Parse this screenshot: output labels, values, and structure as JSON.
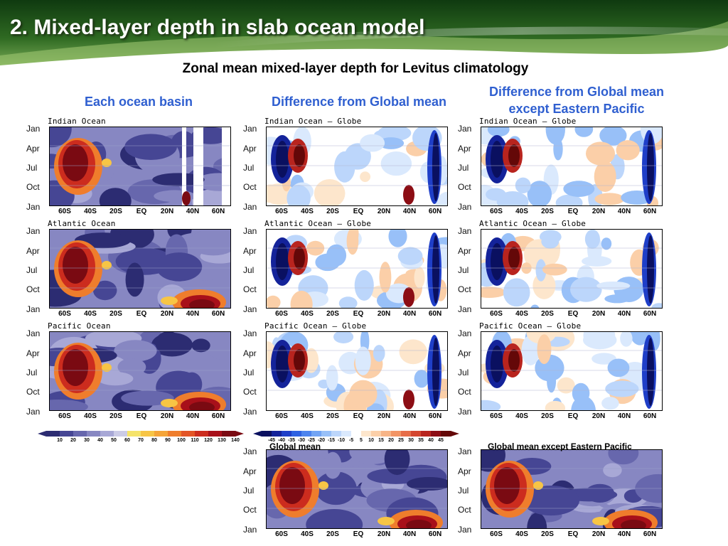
{
  "slide": {
    "title": "2. Mixed-layer depth in slab ocean model",
    "subtitle": "Zonal mean mixed-layer depth for Levitus climatology"
  },
  "columns": {
    "basin": "Each ocean basin",
    "diff": "Difference from Global mean",
    "diff_ex": "Difference from Global mean except Eastern Pacific"
  },
  "axes": {
    "months": [
      "Jan",
      "Apr",
      "Jul",
      "Oct",
      "Jan"
    ],
    "lats": [
      "60S",
      "40S",
      "20S",
      "EQ",
      "20N",
      "40N",
      "60N"
    ]
  },
  "panels": {
    "indian": "Indian  Ocean",
    "indian_diff": "Indian  Ocean  —  Globe",
    "indian_diff_ex": "Indian  Ocean  —  Globe",
    "atlantic": "Atlantic  Ocean",
    "atlantic_diff": "Atlantic  Ocean  —  Globe",
    "atlantic_diff_ex": "Atlantic  Ocean  —  Globe",
    "pacific": "Pacific  Ocean",
    "pacific_diff": "Pacific  Ocean  —  Globe",
    "pacific_diff_ex": "Pacific  Ocean  —  Globe",
    "global": "Global mean",
    "global_ex": "Global mean except Eastern Pacific"
  },
  "colorbars": {
    "abs": {
      "labels": [
        "10",
        "20",
        "30",
        "40",
        "50",
        "60",
        "70",
        "80",
        "90",
        "100",
        "110",
        "120",
        "130",
        "140"
      ],
      "colors": [
        "#2c2c72",
        "#464694",
        "#6767ad",
        "#8787c2",
        "#a8a8d6",
        "#cbcbe6",
        "#f5e36a",
        "#f7c545",
        "#f5a437",
        "#ef7d2c",
        "#e35526",
        "#cc2c1e",
        "#a8101a",
        "#7a0a12"
      ]
    },
    "diff": {
      "labels": [
        "-45",
        "-40",
        "-35",
        "-30",
        "-25",
        "-20",
        "-15",
        "-10",
        "-5",
        "5",
        "10",
        "15",
        "20",
        "25",
        "30",
        "35",
        "40",
        "45"
      ],
      "colors": [
        "#0a1060",
        "#14239a",
        "#1f3fc8",
        "#2f62e2",
        "#4d84ee",
        "#72a4f4",
        "#98c0f8",
        "#bcd6fb",
        "#dae9fd",
        "#ffffff",
        "#fde6cc",
        "#fbcfa8",
        "#f7b486",
        "#f29464",
        "#e66d48",
        "#d4462f",
        "#b8241e",
        "#8c0d14",
        "#640808"
      ]
    }
  }
}
